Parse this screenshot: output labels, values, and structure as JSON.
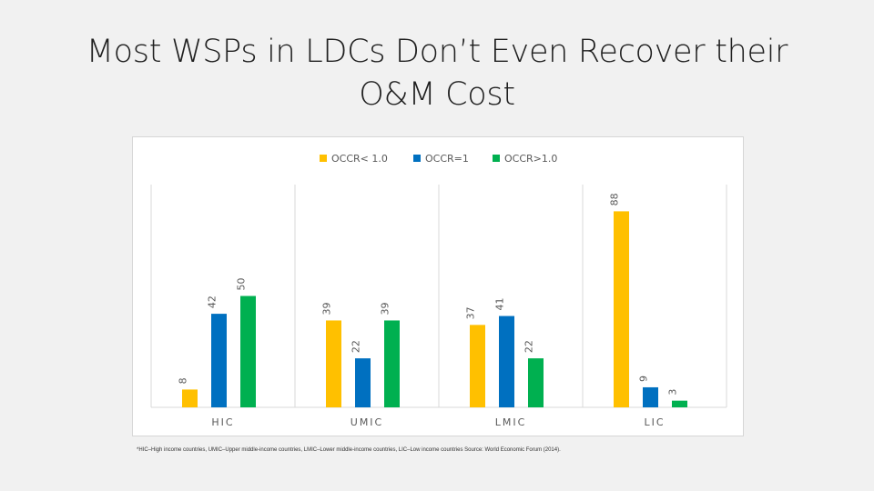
{
  "slide": {
    "title_line1": "Most WSPs in LDCs Don’t Even Recover their",
    "title_line2": "O&M Cost",
    "footnote": "*HIC–High income countries, UMIC–Upper middle-income countries, LMIC–Lower middle-income countries, LIC–Low income countries Source: World Economic Forum (2014)."
  },
  "chart_data": {
    "type": "bar",
    "title": "",
    "xlabel": "",
    "ylabel": "",
    "categories": [
      "HIC",
      "UMIC",
      "LMIC",
      "LIC"
    ],
    "series": [
      {
        "name": "OCCR< 1.0",
        "color": "#ffc000",
        "values": [
          8,
          39,
          37,
          88
        ]
      },
      {
        "name": "OCCR=1",
        "color": "#0070c0",
        "values": [
          42,
          22,
          41,
          9
        ]
      },
      {
        "name": "OCCR>1.0",
        "color": "#00b050",
        "values": [
          50,
          39,
          22,
          3
        ]
      }
    ],
    "ylim": [
      0,
      100
    ],
    "grid": false,
    "legend": "top-center",
    "data_labels": true,
    "data_label_rotation": "vertical",
    "category_separators": true
  }
}
